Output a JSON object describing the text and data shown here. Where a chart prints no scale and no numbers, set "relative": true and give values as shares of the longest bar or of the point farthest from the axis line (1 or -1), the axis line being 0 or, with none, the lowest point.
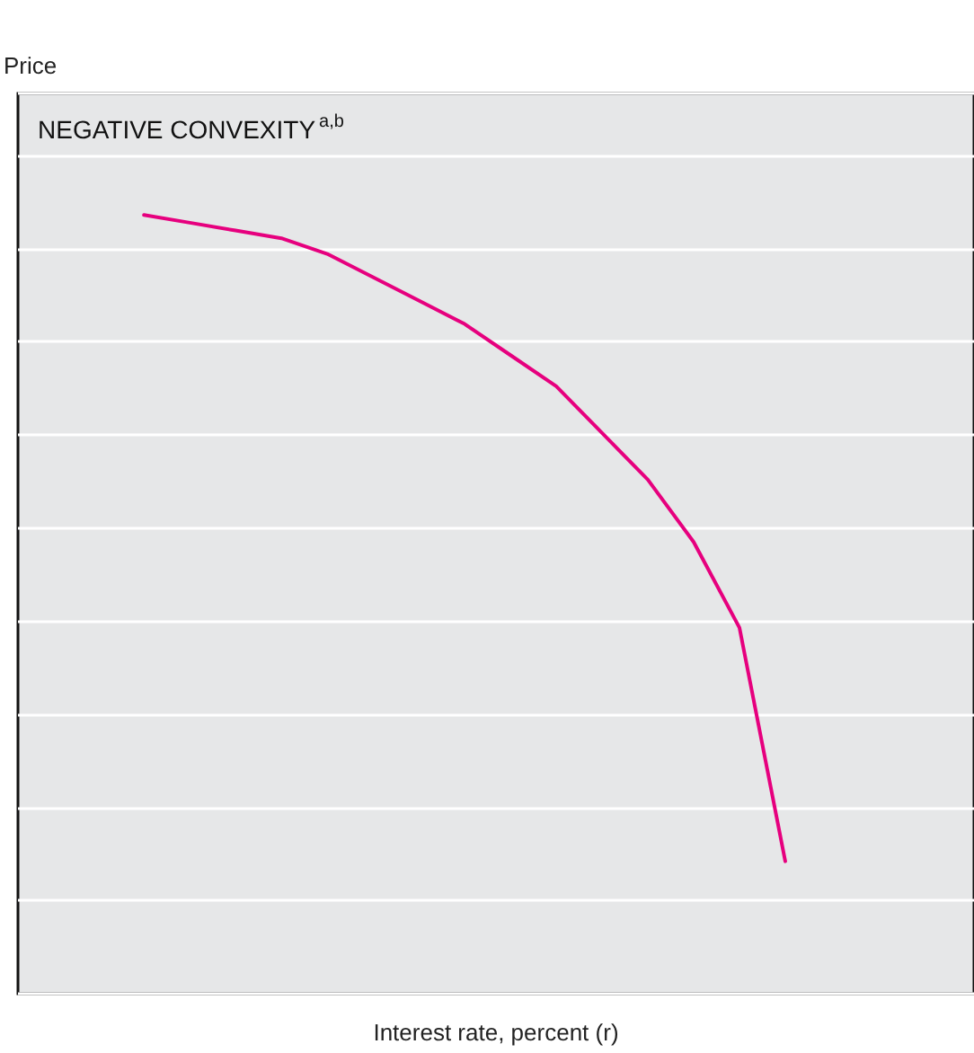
{
  "chart_data": {
    "type": "line",
    "title": "NEGATIVE CONVEXITY$^{a,b}$",
    "annotations": [
      "Price"
    ],
    "xlabel": "Interest rate, percent (r)",
    "relative": true,
    "grid": "y",
    "marker": "none",
    "line_style": "solid",
    "categories": [
      null,
      null,
      null,
      null,
      null,
      null,
      null,
      null,
      null,
      null,
      null,
      null,
      null,
      null,
      null
    ],
    "series": [
      {
        "color": "#e6007e",
        "values": [
          1,
          0.99,
          0.98,
          0.97,
          0.95,
          0.92,
          0.89,
          0.86,
          0.82,
          0.78,
          0.72,
          0.66,
          0.58,
          0.47,
          0.17
        ]
      }
    ]
  }
}
